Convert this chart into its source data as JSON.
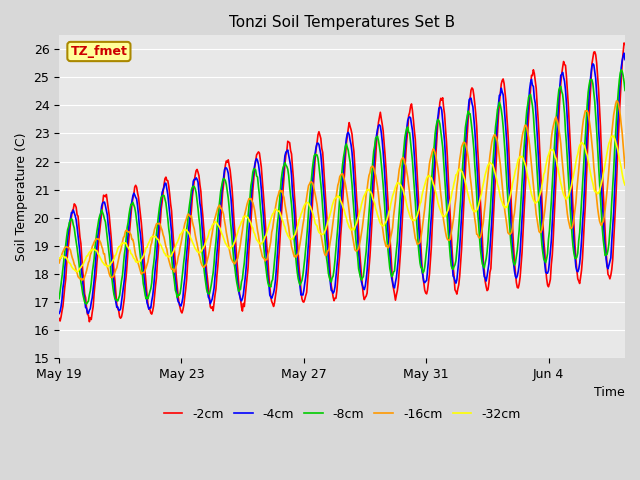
{
  "title": "Tonzi Soil Temperatures Set B",
  "xlabel": "Time",
  "ylabel": "Soil Temperature (C)",
  "ylim": [
    15.0,
    26.5
  ],
  "yticks": [
    15.0,
    16.0,
    17.0,
    18.0,
    19.0,
    20.0,
    21.0,
    22.0,
    23.0,
    24.0,
    25.0,
    26.0
  ],
  "series": [
    {
      "label": "-2cm",
      "color": "#ff0000",
      "lw": 1.2
    },
    {
      "label": "-4cm",
      "color": "#0000ff",
      "lw": 1.2
    },
    {
      "label": "-8cm",
      "color": "#00cc00",
      "lw": 1.2
    },
    {
      "label": "-16cm",
      "color": "#ff9900",
      "lw": 1.2
    },
    {
      "label": "-32cm",
      "color": "#ffff00",
      "lw": 1.2
    }
  ],
  "annotation_text": "TZ_fmet",
  "annotation_bg": "#ffff99",
  "annotation_border": "#aa8800",
  "fig_bg": "#d8d8d8",
  "plot_bg": "#e8e8e8",
  "grid_color": "#ffffff",
  "title_fontsize": 11,
  "axis_label_fontsize": 9,
  "tick_fontsize": 9,
  "n_points": 600,
  "total_days": 18.5,
  "base_temp": 18.3,
  "trend": 0.2,
  "xtick_positions": [
    0,
    4,
    8,
    12,
    16
  ],
  "xtick_labels": [
    "May 19",
    "May 23",
    "May 27",
    "May 31",
    "Jun 4"
  ],
  "period": 1.0,
  "amp_2cm_start": 2.0,
  "amp_2cm_end": 4.2,
  "amp_4cm_start": 1.8,
  "amp_4cm_end": 3.8,
  "amp_8cm_start": 1.5,
  "amp_8cm_end": 3.3,
  "amp_16cm_start": 0.6,
  "amp_16cm_end": 2.2,
  "amp_32cm_start": 0.3,
  "amp_32cm_end": 1.0,
  "phase_2cm": -1.57,
  "phase_4cm": -1.27,
  "phase_8cm": -0.87,
  "phase_16cm": 0.1,
  "phase_32cm": 1.0
}
